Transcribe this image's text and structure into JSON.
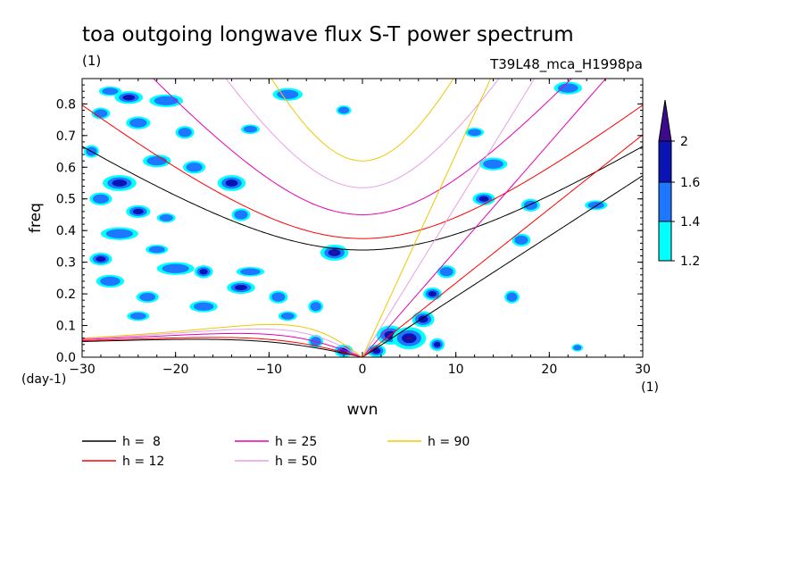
{
  "chart_data": {
    "type": "heatmap",
    "title": "toa outgoing longwave flux S-T power spectrum",
    "subtitle_left": "(1)",
    "subtitle_right": "T39L48_mca_H1998pa",
    "xlabel": "wvn",
    "ylabel": "freq",
    "x_unit": "(1)",
    "y_unit": "(day-1)",
    "xlim": [
      -30,
      30
    ],
    "ylim": [
      0,
      0.88
    ],
    "xticks": [
      -30,
      -20,
      -10,
      0,
      10,
      20,
      30
    ],
    "xtick_labels": [
      "-30",
      "-20",
      "-10",
      "0",
      "10",
      "20",
      "30"
    ],
    "yticks": [
      0,
      0.1,
      0.2,
      0.3,
      0.4,
      0.5,
      0.6,
      0.7,
      0.8
    ],
    "ytick_labels": [
      "0.0",
      "0.1",
      "0.2",
      "0.3",
      "0.4",
      "0.5",
      "0.6",
      "0.7",
      "0.8"
    ],
    "colorbar": {
      "levels": [
        1.2,
        1.4,
        1.6,
        2
      ],
      "labels": [
        "1.2",
        "1.4",
        "1.6",
        "2"
      ],
      "colors": [
        "#00ffff",
        "#1e78ff",
        "#0a14b4",
        "#3c0a8c"
      ]
    },
    "blobs": [
      {
        "x": -29,
        "y": 0.65,
        "rx": 0.8,
        "ry": 0.02,
        "level": 1
      },
      {
        "x": -27,
        "y": 0.84,
        "rx": 1.2,
        "ry": 0.015,
        "level": 1
      },
      {
        "x": -25,
        "y": 0.82,
        "rx": 1.5,
        "ry": 0.02,
        "level": 2
      },
      {
        "x": -21,
        "y": 0.81,
        "rx": 1.8,
        "ry": 0.02,
        "level": 1
      },
      {
        "x": -28,
        "y": 0.77,
        "rx": 1.0,
        "ry": 0.018,
        "level": 1
      },
      {
        "x": -24,
        "y": 0.74,
        "rx": 1.3,
        "ry": 0.02,
        "level": 1
      },
      {
        "x": -19,
        "y": 0.71,
        "rx": 1.0,
        "ry": 0.02,
        "level": 1
      },
      {
        "x": -12,
        "y": 0.72,
        "rx": 1.0,
        "ry": 0.015,
        "level": 1
      },
      {
        "x": -8,
        "y": 0.83,
        "rx": 1.6,
        "ry": 0.02,
        "level": 1
      },
      {
        "x": -2,
        "y": 0.78,
        "rx": 0.8,
        "ry": 0.015,
        "level": 1
      },
      {
        "x": -22,
        "y": 0.62,
        "rx": 1.5,
        "ry": 0.02,
        "level": 1
      },
      {
        "x": -18,
        "y": 0.6,
        "rx": 1.2,
        "ry": 0.02,
        "level": 1
      },
      {
        "x": -26,
        "y": 0.55,
        "rx": 1.8,
        "ry": 0.025,
        "level": 2
      },
      {
        "x": -14,
        "y": 0.55,
        "rx": 1.5,
        "ry": 0.025,
        "level": 2
      },
      {
        "x": -28,
        "y": 0.5,
        "rx": 1.2,
        "ry": 0.02,
        "level": 1
      },
      {
        "x": -24,
        "y": 0.46,
        "rx": 1.3,
        "ry": 0.02,
        "level": 2
      },
      {
        "x": -21,
        "y": 0.44,
        "rx": 1.0,
        "ry": 0.015,
        "level": 1
      },
      {
        "x": -13,
        "y": 0.45,
        "rx": 1.0,
        "ry": 0.02,
        "level": 1
      },
      {
        "x": -26,
        "y": 0.39,
        "rx": 2.0,
        "ry": 0.02,
        "level": 1
      },
      {
        "x": -22,
        "y": 0.34,
        "rx": 1.2,
        "ry": 0.015,
        "level": 1
      },
      {
        "x": -3,
        "y": 0.33,
        "rx": 1.5,
        "ry": 0.025,
        "level": 3
      },
      {
        "x": -28,
        "y": 0.31,
        "rx": 1.2,
        "ry": 0.02,
        "level": 2
      },
      {
        "x": -20,
        "y": 0.28,
        "rx": 2.0,
        "ry": 0.02,
        "level": 1
      },
      {
        "x": -17,
        "y": 0.27,
        "rx": 1.0,
        "ry": 0.02,
        "level": 2
      },
      {
        "x": -12,
        "y": 0.27,
        "rx": 1.5,
        "ry": 0.015,
        "level": 1
      },
      {
        "x": -27,
        "y": 0.24,
        "rx": 1.5,
        "ry": 0.02,
        "level": 1
      },
      {
        "x": -13,
        "y": 0.22,
        "rx": 1.5,
        "ry": 0.02,
        "level": 2
      },
      {
        "x": -23,
        "y": 0.19,
        "rx": 1.2,
        "ry": 0.018,
        "level": 1
      },
      {
        "x": -9,
        "y": 0.19,
        "rx": 1.0,
        "ry": 0.02,
        "level": 1
      },
      {
        "x": -17,
        "y": 0.16,
        "rx": 1.5,
        "ry": 0.018,
        "level": 1
      },
      {
        "x": -5,
        "y": 0.16,
        "rx": 0.8,
        "ry": 0.02,
        "level": 1
      },
      {
        "x": -24,
        "y": 0.13,
        "rx": 1.2,
        "ry": 0.015,
        "level": 1
      },
      {
        "x": -8,
        "y": 0.13,
        "rx": 1.0,
        "ry": 0.015,
        "level": 1
      },
      {
        "x": -5,
        "y": 0.05,
        "rx": 0.8,
        "ry": 0.02,
        "level": 1
      },
      {
        "x": -2,
        "y": 0.02,
        "rx": 1.0,
        "ry": 0.02,
        "level": 2
      },
      {
        "x": 1.5,
        "y": 0.02,
        "rx": 1.0,
        "ry": 0.02,
        "level": 2
      },
      {
        "x": 3,
        "y": 0.07,
        "rx": 1.5,
        "ry": 0.03,
        "level": 3
      },
      {
        "x": 5,
        "y": 0.06,
        "rx": 1.8,
        "ry": 0.035,
        "level": 3
      },
      {
        "x": 6.5,
        "y": 0.12,
        "rx": 1.2,
        "ry": 0.025,
        "level": 2
      },
      {
        "x": 8,
        "y": 0.04,
        "rx": 0.8,
        "ry": 0.02,
        "level": 2
      },
      {
        "x": 7.5,
        "y": 0.2,
        "rx": 1.0,
        "ry": 0.02,
        "level": 2
      },
      {
        "x": 9,
        "y": 0.27,
        "rx": 1.0,
        "ry": 0.02,
        "level": 1
      },
      {
        "x": 14,
        "y": 0.61,
        "rx": 1.5,
        "ry": 0.02,
        "level": 1
      },
      {
        "x": 12,
        "y": 0.71,
        "rx": 1.0,
        "ry": 0.015,
        "level": 1
      },
      {
        "x": 13,
        "y": 0.5,
        "rx": 1.2,
        "ry": 0.02,
        "level": 2
      },
      {
        "x": 18,
        "y": 0.48,
        "rx": 1.0,
        "ry": 0.02,
        "level": 1
      },
      {
        "x": 25,
        "y": 0.48,
        "rx": 1.2,
        "ry": 0.015,
        "level": 1
      },
      {
        "x": 17,
        "y": 0.37,
        "rx": 1.0,
        "ry": 0.02,
        "level": 1
      },
      {
        "x": 16,
        "y": 0.19,
        "rx": 0.8,
        "ry": 0.02,
        "level": 1
      },
      {
        "x": 22,
        "y": 0.85,
        "rx": 1.5,
        "ry": 0.02,
        "level": 1
      },
      {
        "x": 23,
        "y": 0.03,
        "rx": 0.6,
        "ry": 0.012,
        "level": 1
      }
    ],
    "series": [
      {
        "name": "h =  8",
        "color": "#000000",
        "h": 8
      },
      {
        "name": "h = 12",
        "color": "#ff0000",
        "h": 12
      },
      {
        "name": "h = 25",
        "color": "#e600b4",
        "h": 25
      },
      {
        "name": "h = 50",
        "color": "#e6a0e6",
        "h": 50
      },
      {
        "name": "h = 90",
        "color": "#f0c800",
        "h": 90
      }
    ]
  }
}
